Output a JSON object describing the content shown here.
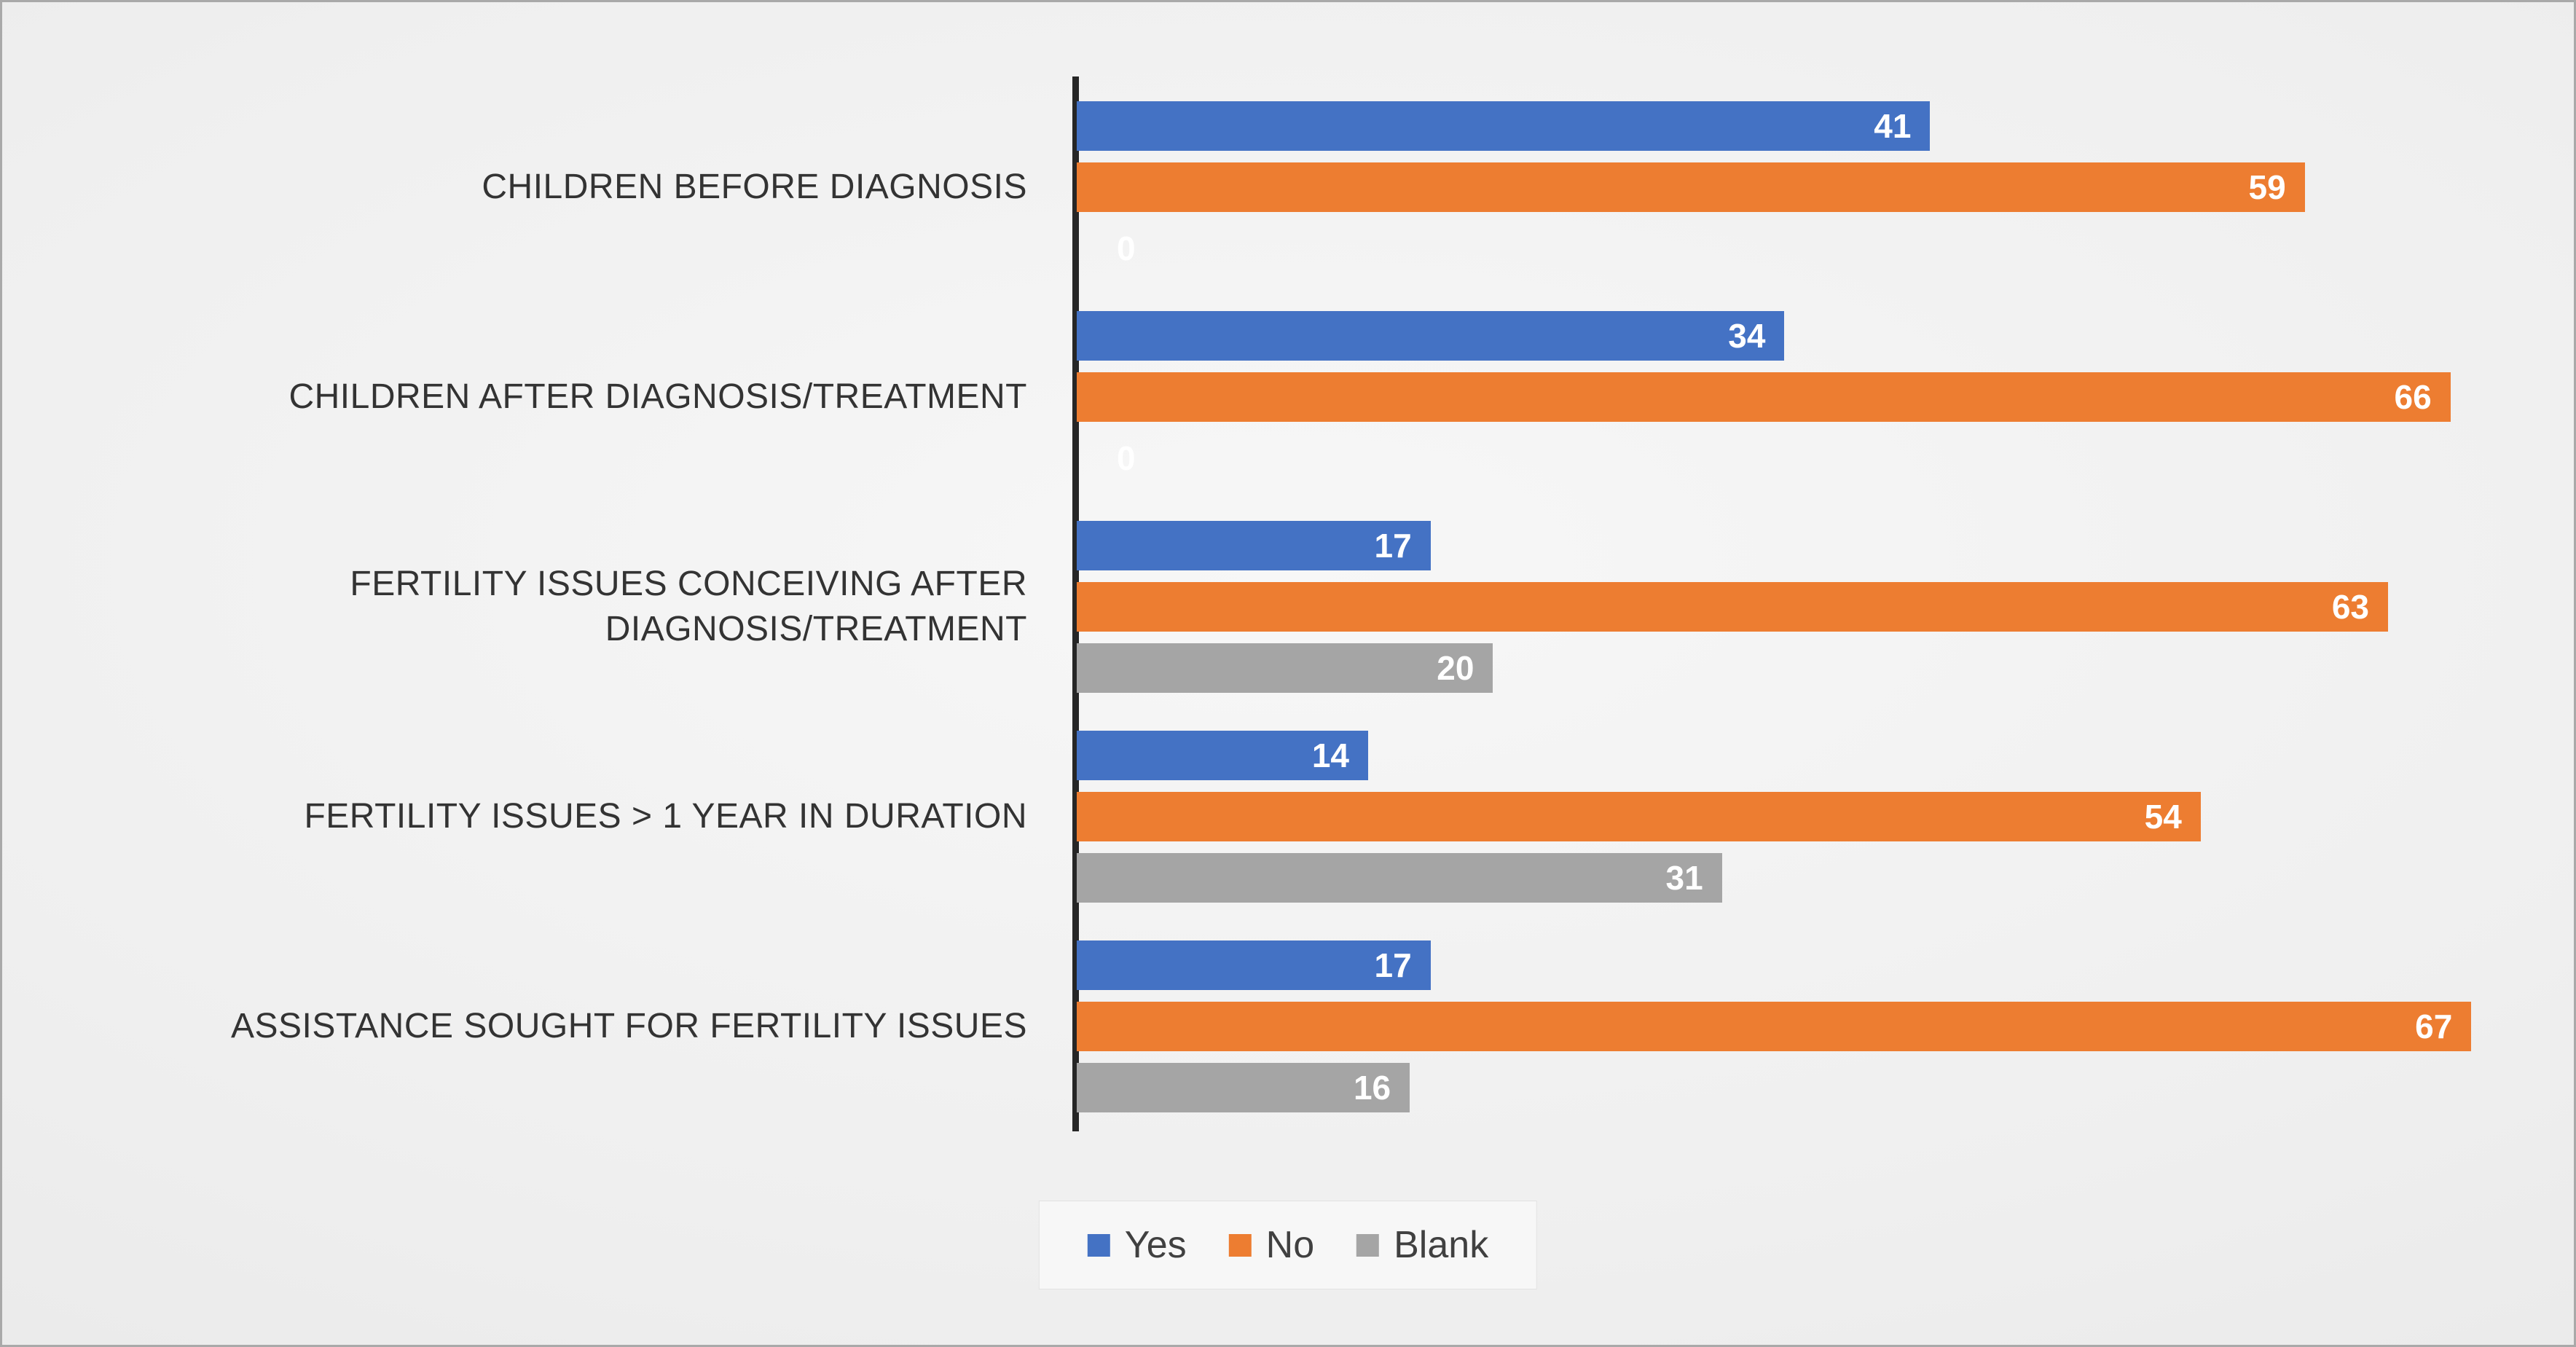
{
  "chart_data": {
    "type": "bar",
    "orientation": "horizontal",
    "title": "",
    "xlabel": "",
    "ylabel": "",
    "xlim": [
      0,
      70
    ],
    "grid": false,
    "legend_position": "bottom",
    "data_labels": true,
    "data_label_color": "#FFFFFF",
    "axis_line_color": "#262626",
    "categories": [
      "CHILDREN BEFORE DIAGNOSIS",
      "CHILDREN AFTER DIAGNOSIS/TREATMENT",
      "FERTILITY ISSUES CONCEIVING AFTER DIAGNOSIS/TREATMENT",
      "FERTILITY ISSUES > 1 YEAR IN DURATION",
      "ASSISTANCE SOUGHT FOR FERTILITY ISSUES"
    ],
    "series": [
      {
        "name": "Yes",
        "color": "#4472C4",
        "values": [
          41,
          34,
          17,
          14,
          17
        ]
      },
      {
        "name": "No",
        "color": "#ED7D31",
        "values": [
          59,
          66,
          63,
          54,
          67
        ]
      },
      {
        "name": "Blank",
        "color": "#A5A5A5",
        "values": [
          0,
          0,
          20,
          31,
          16
        ]
      }
    ]
  }
}
